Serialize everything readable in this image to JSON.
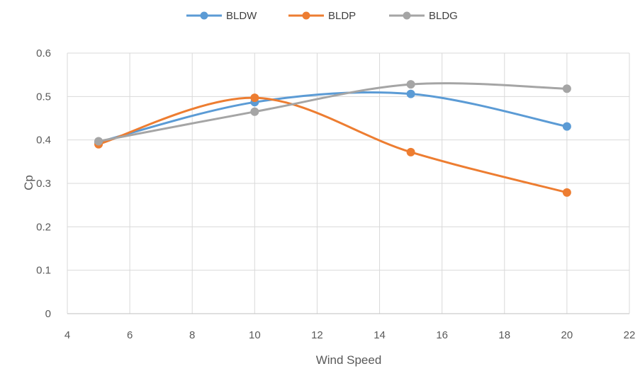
{
  "chart_data": {
    "type": "line",
    "title": "",
    "xlabel": "Wind Speed",
    "ylabel": "Cp",
    "xlim": [
      4,
      22
    ],
    "ylim": [
      0,
      0.6
    ],
    "xticks": [
      4,
      6,
      8,
      10,
      12,
      14,
      16,
      18,
      20,
      22
    ],
    "yticks": [
      0,
      0.1,
      0.2,
      0.3,
      0.4,
      0.5,
      0.6
    ],
    "grid": true,
    "smooth": true,
    "legend_position": "top",
    "series": [
      {
        "name": "BLDW",
        "color": "#5B9BD5",
        "x": [
          5,
          10,
          15,
          20
        ],
        "y": [
          0.395,
          0.487,
          0.506,
          0.431
        ]
      },
      {
        "name": "BLDP",
        "color": "#ED7D31",
        "x": [
          5,
          10,
          15,
          20
        ],
        "y": [
          0.39,
          0.497,
          0.372,
          0.279
        ]
      },
      {
        "name": "BLDG",
        "color": "#A5A5A5",
        "x": [
          5,
          10,
          15,
          20
        ],
        "y": [
          0.397,
          0.465,
          0.528,
          0.518
        ]
      }
    ]
  }
}
